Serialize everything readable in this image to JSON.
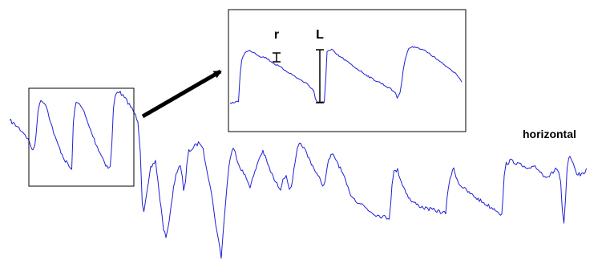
{
  "figure": {
    "trace_label": "horizontal",
    "inset_labels": {
      "r": "r",
      "L": "L"
    },
    "trace_color": "#1f1fd6",
    "marker_color": "#000000"
  }
}
